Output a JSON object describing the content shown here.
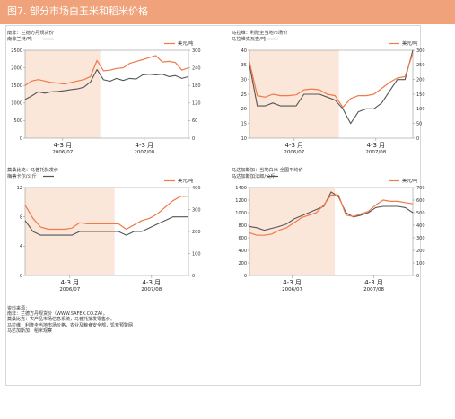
{
  "header": {
    "title": "图7. 部分市场白玉米和稻米价格"
  },
  "colors": {
    "header_bg": "#f0a27a",
    "shade": "#fbe6da",
    "series_local": "#555555",
    "series_usd": "#f07a4a",
    "axis": "#999999",
    "text": "#333333"
  },
  "sources": {
    "label": "资料来源：",
    "lines": [
      "南非：兰德方丹规货价（WWW.SAFEX.CO.ZA）。",
      "莫桑比克：农产品市场信息系统，马普托批发零售价。",
      "马拉维：利隆圭当地市场价格，农业及粮食安全部，饥荒预警网",
      "马达加斯加：稻米观察"
    ]
  },
  "chart_data": [
    {
      "type": "line",
      "panel": "top-left",
      "title": "南非：兰德方丹规货价",
      "left_axis_label": "南非兰特/吨",
      "right_axis_label": "美元/吨",
      "x_labels": [
        {
          "label": "4-3 月",
          "sub": "2006/07"
        },
        {
          "label": "4-3 月",
          "sub": "2007/08"
        }
      ],
      "left_ylim": [
        0,
        2500
      ],
      "left_ticks": [
        "0",
        "500",
        "1000",
        "1500",
        "2000",
        "2500"
      ],
      "right_ylim": [
        0,
        300
      ],
      "right_ticks": [
        "0",
        "60",
        "120",
        "180",
        "240",
        "300"
      ],
      "shaded_points": 12,
      "series": [
        {
          "axis": "left",
          "values": [
            1100,
            1200,
            1320,
            1280,
            1320,
            1330,
            1350,
            1380,
            1400,
            1450,
            1600,
            1950,
            1660,
            1620,
            1700,
            1640,
            1700,
            1680,
            1800,
            1820,
            1800,
            1820,
            1750,
            1780,
            1700,
            1750
          ]
        },
        {
          "axis": "right",
          "values": [
            180,
            195,
            200,
            195,
            190,
            188,
            185,
            190,
            195,
            200,
            210,
            265,
            230,
            232,
            238,
            240,
            255,
            262,
            268,
            275,
            282,
            260,
            262,
            258,
            232,
            240
          ]
        }
      ]
    },
    {
      "type": "line",
      "panel": "top-right",
      "title": "马拉维：利隆圭当地市场价",
      "left_axis_label": "马拉维克瓦查/吨",
      "right_axis_label": "美元/吨",
      "x_labels": [
        {
          "label": "4-3 月",
          "sub": "2006/07"
        },
        {
          "label": "4-3 月",
          "sub": "2007/08"
        }
      ],
      "left_ylim": [
        10,
        40
      ],
      "left_ticks": [
        "10",
        "15",
        "20",
        "25",
        "30",
        "35",
        "40"
      ],
      "right_ylim": [
        0,
        300
      ],
      "right_ticks": [
        "0",
        "50",
        "100",
        "150",
        "200",
        "250",
        "300"
      ],
      "shaded_points": 12,
      "series": [
        {
          "axis": "left",
          "values": [
            35,
            21,
            21,
            22,
            21,
            21,
            21,
            25,
            25,
            25,
            24,
            23,
            20,
            15,
            19,
            20,
            20,
            22,
            26,
            30,
            30,
            40
          ]
        },
        {
          "axis": "right",
          "values": [
            260,
            145,
            140,
            150,
            145,
            145,
            148,
            165,
            168,
            165,
            150,
            145,
            105,
            135,
            145,
            145,
            150,
            170,
            190,
            205,
            210,
            290
          ]
        }
      ]
    },
    {
      "type": "line",
      "panel": "bottom-left",
      "title": "莫桑比克：马普托批发价",
      "left_axis_label": "梅蒂卡尔/公斤",
      "right_axis_label": "美元/吨",
      "x_labels": [
        {
          "label": "4-3 月",
          "sub": "2006/07"
        },
        {
          "label": "4-3 月",
          "sub": "2007/08"
        }
      ],
      "left_ylim": [
        0,
        12
      ],
      "left_ticks": [
        "0",
        "4",
        "8",
        "12"
      ],
      "right_ylim": [
        0,
        400
      ],
      "right_ticks": [
        "0",
        "100",
        "200",
        "300",
        "400"
      ],
      "shaded_points": 12,
      "series": [
        {
          "axis": "left",
          "values": [
            7.5,
            6,
            5.5,
            5.5,
            5.5,
            5.5,
            5.5,
            6,
            6,
            6,
            6,
            6,
            6,
            5.5,
            6,
            6,
            6.5,
            7,
            7.5,
            8,
            8,
            8
          ]
        },
        {
          "axis": "right",
          "values": [
            320,
            260,
            220,
            210,
            210,
            210,
            215,
            240,
            235,
            235,
            235,
            235,
            235,
            210,
            230,
            250,
            260,
            280,
            310,
            340,
            360,
            360
          ]
        }
      ]
    },
    {
      "type": "line",
      "panel": "bottom-right",
      "title": "马达加斯加：当地白米-全国平均价",
      "left_axis_label": "马达加斯加法郎/公斤",
      "right_axis_label": "美元/吨",
      "x_labels": [
        {
          "label": "4-3 月",
          "sub": "2006/07"
        },
        {
          "label": "4-3 月",
          "sub": "2007/08"
        }
      ],
      "left_ylim": [
        0,
        1400
      ],
      "left_ticks": [
        "0",
        "200",
        "400",
        "600",
        "800",
        "1000",
        "1200",
        "1400"
      ],
      "right_ylim": [
        0,
        700
      ],
      "right_ticks": [
        "0",
        "100",
        "200",
        "300",
        "400",
        "500",
        "600",
        "700"
      ],
      "shaded_points": 12,
      "series": [
        {
          "axis": "left",
          "values": [
            780,
            760,
            720,
            750,
            780,
            820,
            900,
            950,
            1000,
            1050,
            1100,
            1330,
            1250,
            1000,
            930,
            960,
            1000,
            1080,
            1100,
            1100,
            1100,
            1080,
            1000
          ]
        },
        {
          "axis": "right",
          "values": [
            340,
            320,
            320,
            330,
            360,
            380,
            420,
            460,
            480,
            500,
            560,
            640,
            640,
            480,
            470,
            490,
            510,
            560,
            600,
            590,
            590,
            580,
            570
          ]
        }
      ]
    }
  ]
}
